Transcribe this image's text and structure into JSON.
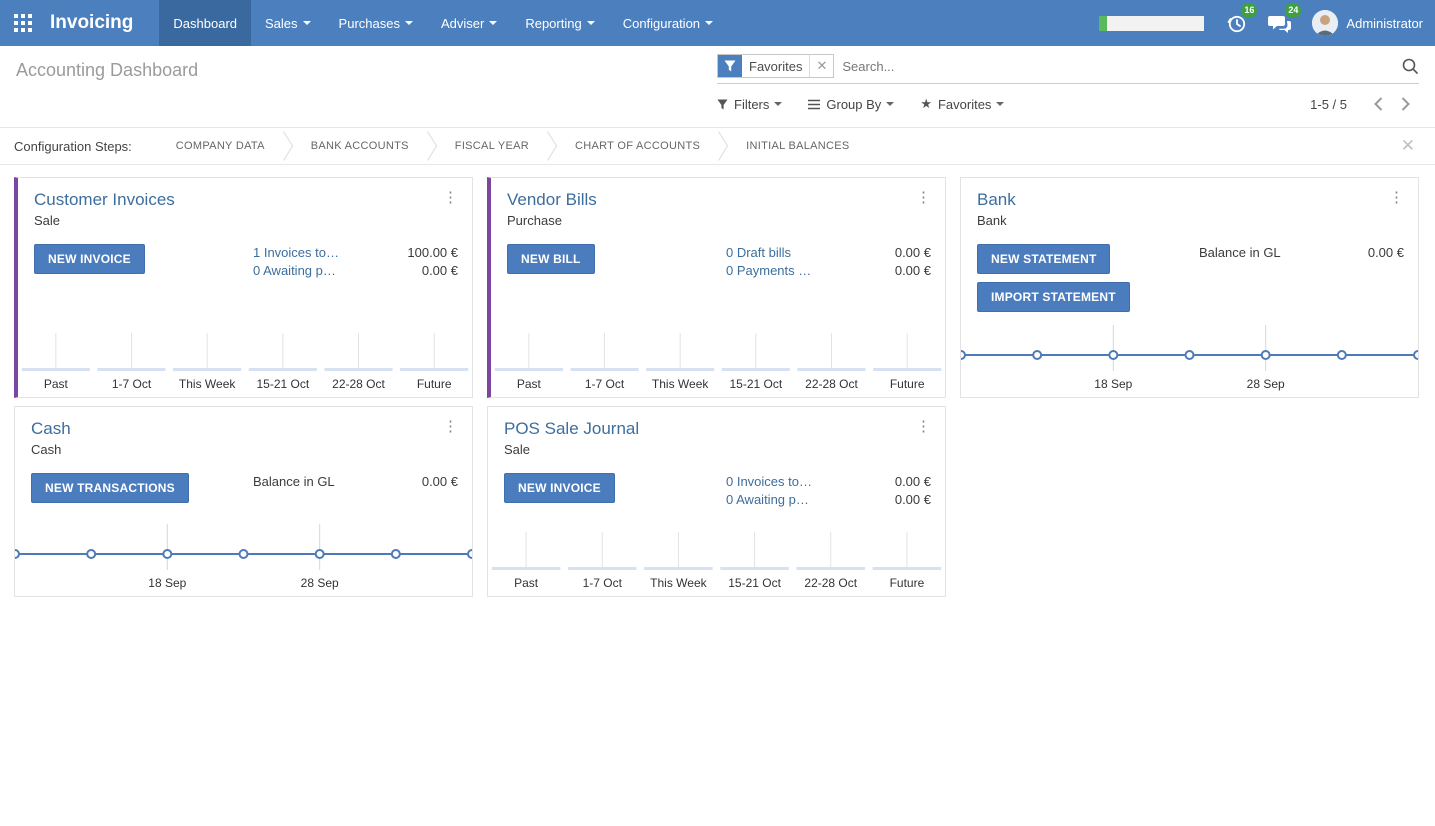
{
  "navbar": {
    "brand": "Invoicing",
    "menus": [
      {
        "label": "Dashboard",
        "active": true,
        "dropdown": false
      },
      {
        "label": "Sales",
        "active": false,
        "dropdown": true
      },
      {
        "label": "Purchases",
        "active": false,
        "dropdown": true
      },
      {
        "label": "Adviser",
        "active": false,
        "dropdown": true
      },
      {
        "label": "Reporting",
        "active": false,
        "dropdown": true
      },
      {
        "label": "Configuration",
        "active": false,
        "dropdown": true
      }
    ],
    "activity_count": "16",
    "message_count": "24",
    "user": "Administrator"
  },
  "control_panel": {
    "title": "Accounting Dashboard",
    "search_facet": "Favorites",
    "search_placeholder": "Search...",
    "filters_label": "Filters",
    "group_by_label": "Group By",
    "favorites_label": "Favorites",
    "pager": "1-5 / 5"
  },
  "config_bar": {
    "label": "Configuration Steps:",
    "steps": [
      {
        "label": "COMPANY DATA"
      },
      {
        "label": "BANK ACCOUNTS"
      },
      {
        "label": "FISCAL YEAR"
      },
      {
        "label": "CHART OF ACCOUNTS"
      },
      {
        "label": "INITIAL BALANCES"
      }
    ]
  },
  "cards": [
    {
      "title": "Customer Invoices",
      "subtitle": "Sale",
      "accent": true,
      "buttons": [
        {
          "label": "NEW INVOICE"
        }
      ],
      "rows": [
        {
          "link": "1 Invoices to…",
          "amount": "100.00 €"
        },
        {
          "link": "0 Awaiting p…",
          "amount": "0.00 €"
        }
      ],
      "chart": {
        "type": "bar",
        "categories": [
          "Past",
          "1-7 Oct",
          "This Week",
          "15-21 Oct",
          "22-28 Oct",
          "Future"
        ],
        "values": [
          0,
          0,
          0,
          0,
          0,
          0
        ]
      }
    },
    {
      "title": "Vendor Bills",
      "subtitle": "Purchase",
      "accent": true,
      "buttons": [
        {
          "label": "NEW BILL"
        }
      ],
      "rows": [
        {
          "link": "0 Draft bills",
          "amount": "0.00 €"
        },
        {
          "link": "0 Payments …",
          "amount": "0.00 €"
        }
      ],
      "chart": {
        "type": "bar",
        "categories": [
          "Past",
          "1-7 Oct",
          "This Week",
          "15-21 Oct",
          "22-28 Oct",
          "Future"
        ],
        "values": [
          0,
          0,
          0,
          0,
          0,
          0
        ]
      }
    },
    {
      "title": "Bank",
      "subtitle": "Bank",
      "accent": false,
      "buttons": [
        {
          "label": "NEW STATEMENT"
        },
        {
          "label": "IMPORT STATEMENT"
        }
      ],
      "rows": [
        {
          "label": "Balance in GL",
          "amount": "0.00 €"
        }
      ],
      "chart": {
        "type": "line",
        "x_labels": [
          "18 Sep",
          "28 Sep"
        ],
        "values": [
          0,
          0,
          0,
          0,
          0,
          0,
          0
        ]
      }
    },
    {
      "title": "Cash",
      "subtitle": "Cash",
      "accent": false,
      "buttons": [
        {
          "label": "NEW TRANSACTIONS"
        }
      ],
      "rows": [
        {
          "label": "Balance in GL",
          "amount": "0.00 €"
        }
      ],
      "chart": {
        "type": "line",
        "x_labels": [
          "18 Sep",
          "28 Sep"
        ],
        "values": [
          0,
          0,
          0,
          0,
          0,
          0,
          0
        ]
      }
    },
    {
      "title": "POS Sale Journal",
      "subtitle": "Sale",
      "accent": false,
      "buttons": [
        {
          "label": "NEW INVOICE"
        }
      ],
      "rows": [
        {
          "link": "0 Invoices to…",
          "amount": "0.00 €"
        },
        {
          "link": "0 Awaiting p…",
          "amount": "0.00 €"
        }
      ],
      "chart": {
        "type": "bar",
        "categories": [
          "Past",
          "1-7 Oct",
          "This Week",
          "15-21 Oct",
          "22-28 Oct",
          "Future"
        ],
        "values": [
          0,
          0,
          0,
          0,
          0,
          0
        ]
      }
    }
  ],
  "colors": {
    "navbar": "#4b7fbe",
    "navbar_active": "#39699f",
    "card_accent": "#7c45a2",
    "primary_button": "#4b7cbd",
    "link": "#3d6e9e",
    "badge": "#3ea13f",
    "chart_line": "#4f7ab8",
    "chart_bar_fill": "#d6e2f1"
  }
}
